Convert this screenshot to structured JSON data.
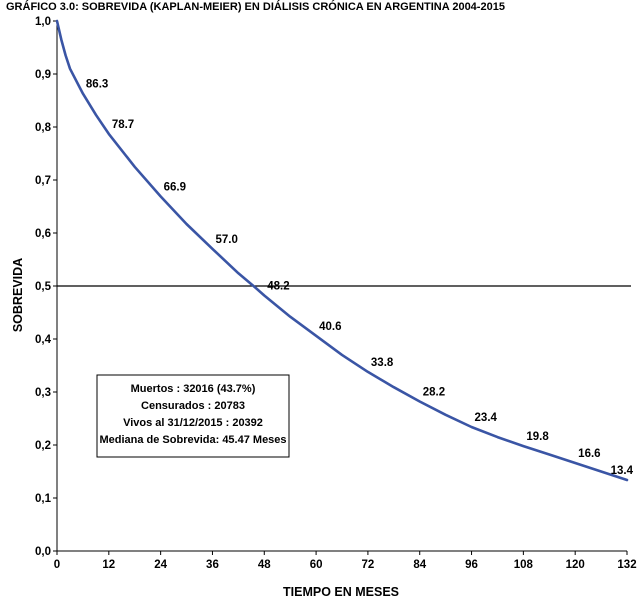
{
  "chart_data": {
    "type": "line",
    "title": "GRÁFICO 3.0: SOBREVIDA (KAPLAN-MEIER) EN DIÁLISIS CRÓNICA EN ARGENTINA 2004-2015",
    "xlabel": "TIEMPO EN MESES",
    "ylabel": "SOBREVIDA",
    "xlim": [
      0,
      132
    ],
    "ylim": [
      0.0,
      1.0
    ],
    "x_ticks": [
      0,
      12,
      24,
      36,
      48,
      60,
      72,
      84,
      96,
      108,
      120,
      132
    ],
    "y_ticks": [
      0.0,
      0.1,
      0.2,
      0.3,
      0.4,
      0.5,
      0.6,
      0.7,
      0.8,
      0.9,
      1.0
    ],
    "y_tick_labels": [
      "0,0",
      "0,1",
      "0,2",
      "0,3",
      "0,4",
      "0,5",
      "0,6",
      "0,7",
      "0,8",
      "0,9",
      "1,0"
    ],
    "reference_line": {
      "y": 0.5
    },
    "series": [
      {
        "color": "#3a55a5",
        "x": [
          0,
          1,
          2,
          3,
          6,
          9,
          12,
          18,
          24,
          30,
          36,
          42,
          45.5,
          48,
          54,
          60,
          66,
          72,
          78,
          84,
          90,
          96,
          102,
          108,
          114,
          120,
          126,
          132
        ],
        "y": [
          1.0,
          0.965,
          0.935,
          0.91,
          0.863,
          0.823,
          0.787,
          0.725,
          0.669,
          0.617,
          0.57,
          0.524,
          0.5,
          0.482,
          0.442,
          0.406,
          0.37,
          0.338,
          0.309,
          0.282,
          0.257,
          0.234,
          0.215,
          0.198,
          0.182,
          0.166,
          0.15,
          0.134
        ]
      }
    ],
    "data_labels": [
      {
        "x": 6,
        "y": 0.863,
        "text": "86.3"
      },
      {
        "x": 12,
        "y": 0.787,
        "text": "78.7"
      },
      {
        "x": 24,
        "y": 0.669,
        "text": "66.9"
      },
      {
        "x": 36,
        "y": 0.57,
        "text": "57.0"
      },
      {
        "x": 48,
        "y": 0.482,
        "text": "48.2"
      },
      {
        "x": 60,
        "y": 0.406,
        "text": "40.6"
      },
      {
        "x": 72,
        "y": 0.338,
        "text": "33.8"
      },
      {
        "x": 84,
        "y": 0.282,
        "text": "28.2"
      },
      {
        "x": 96,
        "y": 0.234,
        "text": "23.4"
      },
      {
        "x": 108,
        "y": 0.198,
        "text": "19.8"
      },
      {
        "x": 120,
        "y": 0.166,
        "text": "16.6"
      },
      {
        "x": 132,
        "y": 0.134,
        "text": "13.4"
      }
    ],
    "legend_box": {
      "placement": "lower-left",
      "lines": [
        "Muertos : 32016 (43.7%)",
        "Censurados : 20783",
        "Vivos al 31/12/2015 : 20392",
        "Mediana de Sobrevida: 45.47 Meses"
      ]
    },
    "grid": false
  }
}
